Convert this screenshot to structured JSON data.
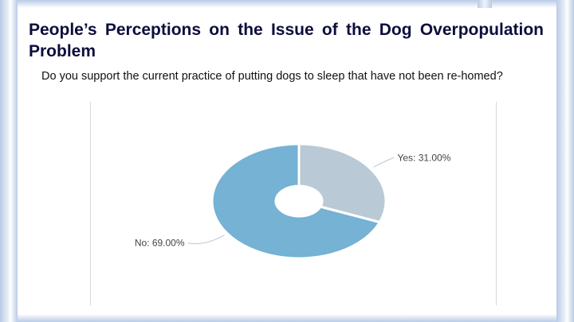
{
  "slide": {
    "title": "People’s Perceptions on the Issue of the Dog Overpopulation Problem",
    "question": "Do you support the current practice of putting dogs to sleep that have not been re-homed?"
  },
  "colors": {
    "yes": "#b9cad6",
    "no": "#75b2d3",
    "leader": "#b9cad6"
  },
  "chart_data": {
    "type": "pie",
    "donut": true,
    "title": "",
    "categories": [
      "Yes",
      "No"
    ],
    "values": [
      31.0,
      69.0
    ],
    "labels": [
      "Yes: 31.00%",
      "No: 69.00%"
    ]
  }
}
